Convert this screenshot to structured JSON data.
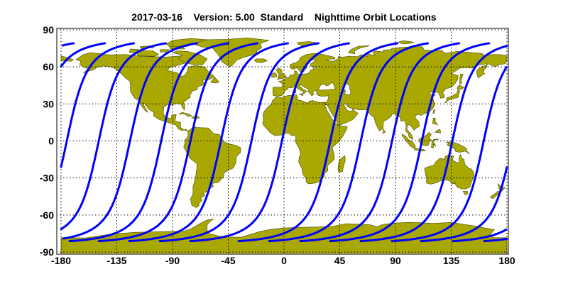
{
  "chart_data": {
    "type": "map",
    "title": "2017-03-16    Version: 5.00  Standard    Nighttime Orbit Locations",
    "xlim": [
      -180,
      180
    ],
    "ylim": [
      -90,
      90
    ],
    "x_ticks": [
      "-180",
      "-135",
      "-90",
      "-45",
      "0",
      "45",
      "90",
      "135",
      "180"
    ],
    "x_tick_values": [
      -180,
      -135,
      -90,
      -45,
      0,
      45,
      90,
      135,
      180
    ],
    "y_ticks": [
      "90",
      "60",
      "30",
      "0",
      "-30",
      "-60",
      "-90"
    ],
    "y_tick_values": [
      90,
      60,
      30,
      0,
      -30,
      -60,
      -90
    ],
    "grid": true,
    "orbit_tracks": {
      "equator_crossing_lon": [
        -175.4,
        -149.6,
        -124.4,
        -99.2,
        -75.6,
        -51.0,
        -26.3,
        -1.7,
        37.3,
        62.0,
        87.2,
        111.3,
        135.9,
        161.2
      ],
      "lat_range": [
        -81.2,
        79.1
      ]
    },
    "colors": {
      "land": "#a8a800",
      "track": "#0000ff",
      "frame": "#808080"
    }
  }
}
